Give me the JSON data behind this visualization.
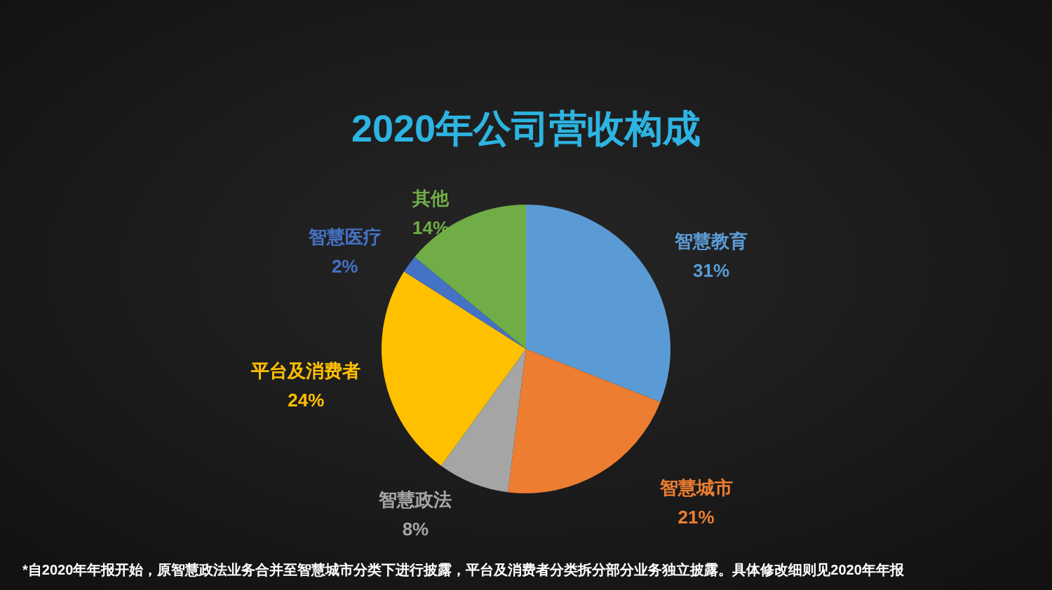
{
  "chart_data": {
    "type": "pie",
    "title": "2020年公司营收构成",
    "categories": [
      "智慧教育",
      "智慧城市",
      "智慧政法",
      "平台及消费者",
      "智慧医疗",
      "其他"
    ],
    "values": [
      31,
      21,
      8,
      24,
      2,
      14
    ],
    "value_labels": [
      "31%",
      "21%",
      "8%",
      "24%",
      "2%",
      "14%"
    ],
    "colors": [
      "#5b9bd5",
      "#ed7d31",
      "#a5a5a5",
      "#ffc000",
      "#4472c4",
      "#70ad47"
    ],
    "annotations": [
      "*自2020年年报开始，原智慧政法业务合并至智慧城市分类下进行披露，平台及消费者分类拆分部分业务独立披露。具体修改细则见2020年年报"
    ]
  }
}
